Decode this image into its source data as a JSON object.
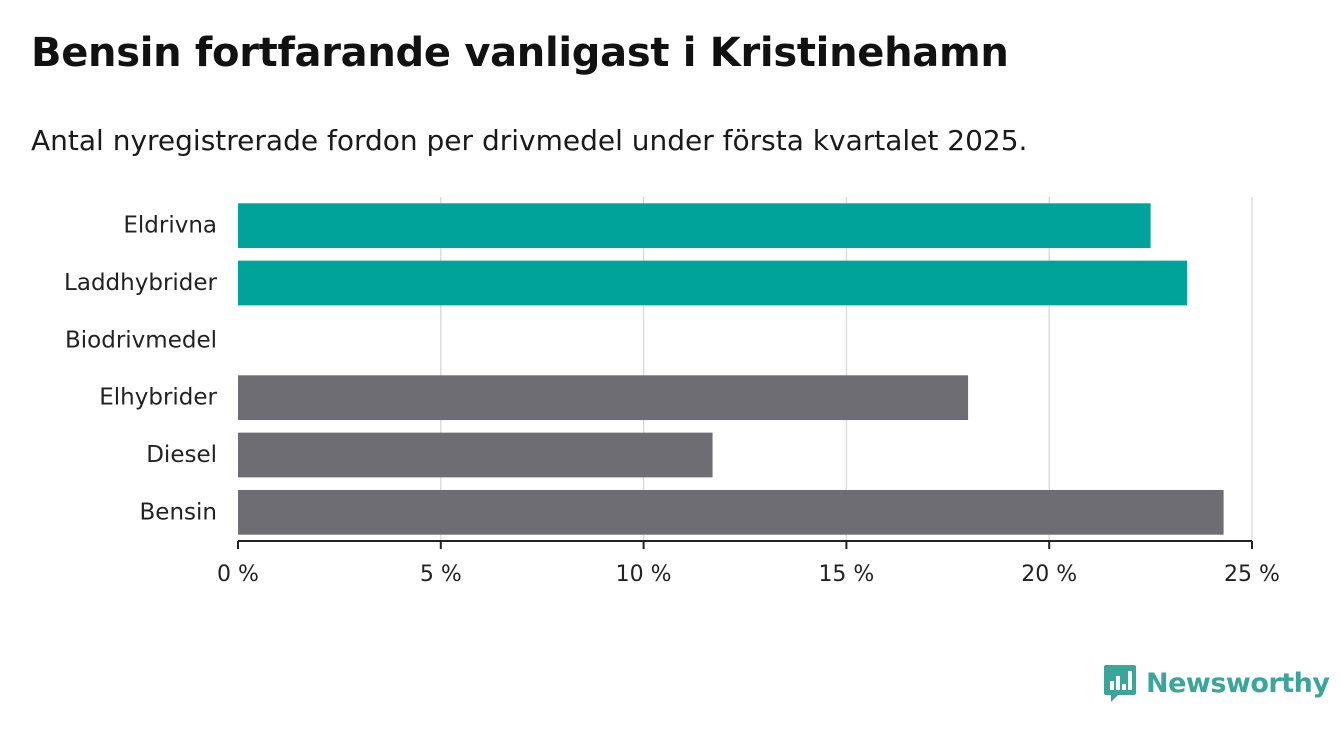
{
  "header": {
    "title": "Bensin fortfarande vanligast i Kristinehamn",
    "subtitle": "Antal nyregistrerade fordon per drivmedel under första kvartalet 2025."
  },
  "brand": {
    "name": "Newsworthy",
    "icon": "chart-bubble-icon",
    "color": "#3aa59a"
  },
  "chart_data": {
    "type": "bar",
    "orientation": "horizontal",
    "title": "Bensin fortfarande vanligast i Kristinehamn",
    "subtitle": "Antal nyregistrerade fordon per drivmedel under första kvartalet 2025.",
    "categories": [
      "Eldrivna",
      "Laddhybrider",
      "Biodrivmedel",
      "Elhybrider",
      "Diesel",
      "Bensin"
    ],
    "values": [
      22.5,
      23.4,
      0,
      18.0,
      11.7,
      24.3
    ],
    "colors": [
      "#00a39a",
      "#00a39a",
      "#00a39a",
      "#6e6d73",
      "#6e6d73",
      "#6e6d73"
    ],
    "xlim": [
      0,
      25
    ],
    "xticks": [
      0,
      5,
      10,
      15,
      20,
      25
    ],
    "xtick_labels": [
      "0 %",
      "5 %",
      "10 %",
      "15 %",
      "20 %",
      "25 %"
    ],
    "xlabel": "",
    "ylabel": "",
    "grid": "vertical",
    "legend": "none"
  }
}
